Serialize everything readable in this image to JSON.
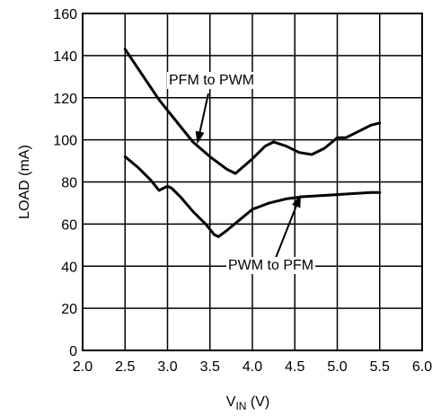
{
  "chart_data": {
    "type": "line",
    "title": "",
    "xlabel": {
      "main": "V",
      "subscript": "IN",
      "unit": " (V)"
    },
    "ylabel": "LOAD (mA)",
    "xlim": [
      2.0,
      6.0
    ],
    "ylim": [
      0,
      160
    ],
    "x_ticks": [
      "2.0",
      "2.5",
      "3.0",
      "3.5",
      "4.0",
      "4.5",
      "5.0",
      "5.5",
      "6.0"
    ],
    "y_ticks": [
      "0",
      "20",
      "40",
      "60",
      "80",
      "100",
      "120",
      "140",
      "160"
    ],
    "grid": true,
    "series": [
      {
        "name": "PFM to PWM",
        "x": [
          2.5,
          2.7,
          2.9,
          3.1,
          3.3,
          3.5,
          3.7,
          3.8,
          4.0,
          4.15,
          4.25,
          4.4,
          4.55,
          4.7,
          4.85,
          5.0,
          5.1,
          5.25,
          5.4,
          5.5
        ],
        "y": [
          143,
          131,
          119,
          109,
          99,
          92,
          86,
          84,
          91,
          97,
          99,
          97,
          94,
          93,
          96,
          101,
          101,
          104,
          107,
          108
        ]
      },
      {
        "name": "PWM to PFM",
        "x": [
          2.5,
          2.65,
          2.8,
          2.9,
          3.0,
          3.05,
          3.15,
          3.3,
          3.45,
          3.55,
          3.6,
          3.7,
          3.85,
          4.0,
          4.2,
          4.4,
          4.6,
          4.8,
          5.0,
          5.2,
          5.4,
          5.5
        ],
        "y": [
          92,
          87,
          81,
          76,
          78,
          77,
          73,
          66,
          60,
          55,
          54,
          57,
          62,
          67,
          70,
          72,
          73,
          73.5,
          74,
          74.5,
          75,
          75
        ]
      }
    ],
    "annotations": [
      {
        "text": "PFM to PWM",
        "arrow_to": [
          3.35,
          98
        ]
      },
      {
        "text": "PWM to PFM",
        "arrow_to": [
          4.57,
          74
        ]
      }
    ]
  }
}
